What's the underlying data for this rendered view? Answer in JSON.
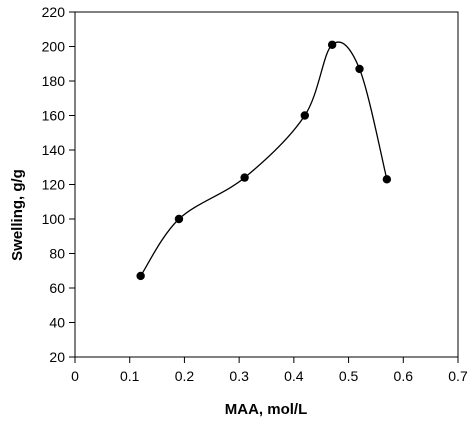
{
  "chart_data": {
    "type": "scatter",
    "title": "",
    "xlabel": "MAA, mol/L",
    "ylabel": "Swelling, g/g",
    "xlim": [
      0,
      0.7
    ],
    "ylim": [
      20,
      220
    ],
    "xticks": [
      0,
      0.1,
      0.2,
      0.3,
      0.4,
      0.5,
      0.6,
      0.7
    ],
    "yticks": [
      20,
      40,
      60,
      80,
      100,
      120,
      140,
      160,
      180,
      200,
      220
    ],
    "grid": false,
    "legend": "none",
    "marker": "filled-circle",
    "line": "smoothed",
    "colors": {
      "series": "#000000",
      "axis": "#000000",
      "background": "#ffffff"
    },
    "series": [
      {
        "x": [
          0.12,
          0.19,
          0.31,
          0.42,
          0.47,
          0.52,
          0.57
        ],
        "y": [
          67,
          100,
          124,
          160,
          201,
          187,
          123
        ]
      }
    ]
  }
}
